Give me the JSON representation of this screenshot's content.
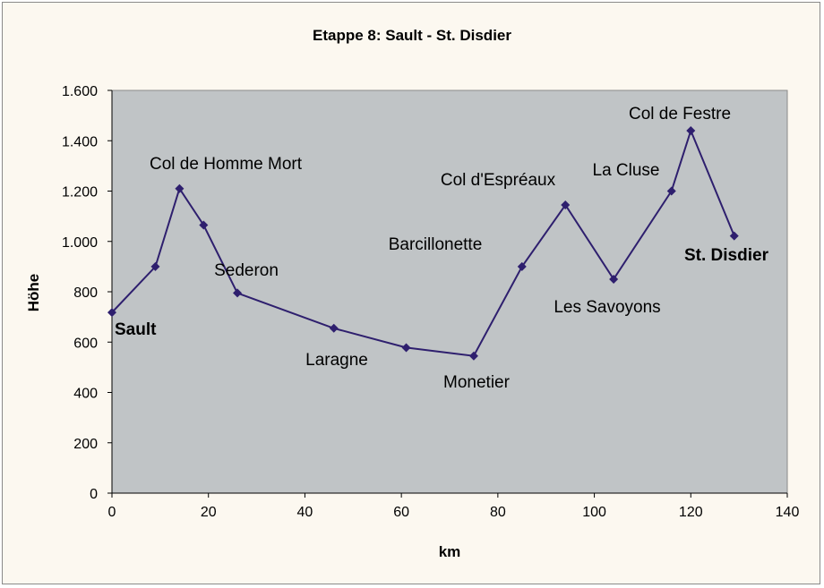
{
  "chart_data": {
    "type": "line",
    "title": "Etappe 8: Sault - St. Disdier",
    "xlabel": "km",
    "ylabel": "Höhe",
    "xlim": [
      0,
      140
    ],
    "ylim": [
      0,
      1600
    ],
    "xticks": [
      0,
      20,
      40,
      60,
      80,
      100,
      120,
      140
    ],
    "yticks": [
      0,
      200,
      400,
      600,
      800,
      1000,
      1200,
      1400,
      1600
    ],
    "ytick_labels": [
      "0",
      "200",
      "400",
      "600",
      "800",
      "1.000",
      "1.200",
      "1.400",
      "1.600"
    ],
    "grid": false,
    "plot_background": "#c0c4c6",
    "series": [
      {
        "color": "#2e1f6e",
        "marker": "diamond",
        "points": [
          {
            "x": 0,
            "y": 718
          },
          {
            "x": 9,
            "y": 900
          },
          {
            "x": 14,
            "y": 1210
          },
          {
            "x": 19,
            "y": 1065
          },
          {
            "x": 26,
            "y": 795
          },
          {
            "x": 46,
            "y": 655
          },
          {
            "x": 61,
            "y": 578
          },
          {
            "x": 75,
            "y": 545
          },
          {
            "x": 85,
            "y": 900
          },
          {
            "x": 94,
            "y": 1145
          },
          {
            "x": 104,
            "y": 850
          },
          {
            "x": 116,
            "y": 1200
          },
          {
            "x": 120,
            "y": 1440
          },
          {
            "x": 129,
            "y": 1022
          }
        ]
      }
    ],
    "annotations": [
      {
        "text": "Sault",
        "bold": true
      },
      {
        "text": "Col de Homme Mort",
        "bold": false
      },
      {
        "text": "Sederon",
        "bold": false
      },
      {
        "text": "Laragne",
        "bold": false
      },
      {
        "text": "Monetier",
        "bold": false
      },
      {
        "text": "Barcillonette",
        "bold": false
      },
      {
        "text": "Col d'Espréaux",
        "bold": false
      },
      {
        "text": "Les Savoyons",
        "bold": false
      },
      {
        "text": "La Cluse",
        "bold": false
      },
      {
        "text": "Col de Festre",
        "bold": false
      },
      {
        "text": "St. Disdier",
        "bold": true
      }
    ]
  }
}
